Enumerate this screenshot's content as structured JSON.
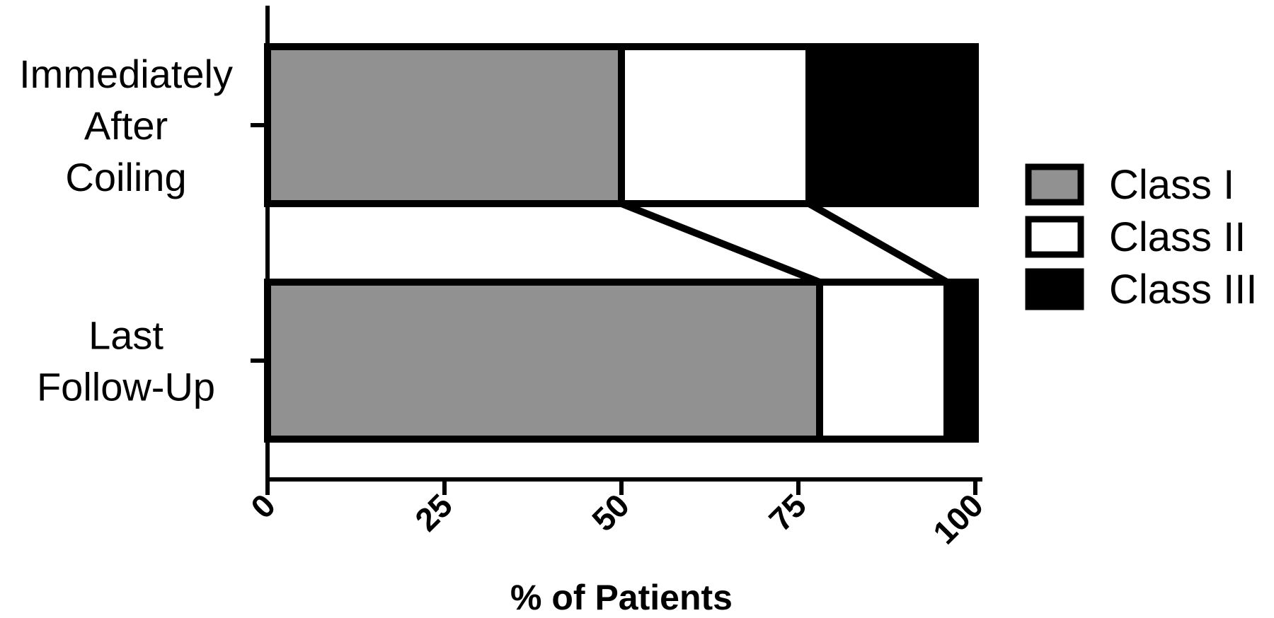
{
  "chart_data": {
    "type": "bar",
    "orientation": "horizontal",
    "stacked": true,
    "categories": [
      {
        "lines": [
          "Immediately",
          "After",
          "Coiling"
        ]
      },
      {
        "lines": [
          "Last",
          "Follow-Up"
        ]
      }
    ],
    "series": [
      {
        "name": "Class I",
        "color": "#919191",
        "values": [
          50,
          78
        ]
      },
      {
        "name": "Class II",
        "color": "#ffffff",
        "values": [
          26.5,
          18
        ]
      },
      {
        "name": "Class III",
        "color": "#000000",
        "values": [
          23.5,
          4
        ]
      }
    ],
    "xlabel": "% of Patients",
    "xlim": [
      0,
      100
    ],
    "xticks": [
      "0",
      "25",
      "50",
      "75",
      "100"
    ],
    "tick_label_rotation": "-45deg",
    "connector_lines": true,
    "legend_position": "right",
    "grid": false
  }
}
